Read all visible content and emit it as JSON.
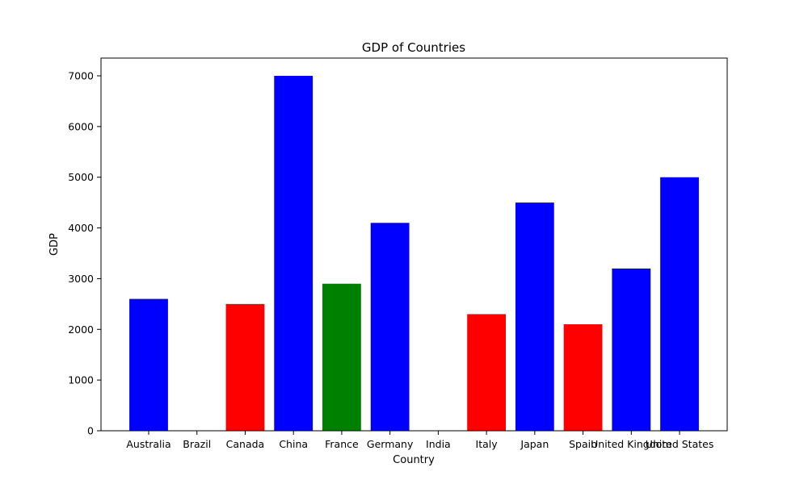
{
  "chart_data": {
    "type": "bar",
    "title": "GDP of Countries",
    "xlabel": "Country",
    "ylabel": "GDP",
    "categories": [
      "Australia",
      "Brazil",
      "Canada",
      "China",
      "France",
      "Germany",
      "India",
      "Italy",
      "Japan",
      "Spain",
      "United Kingdom",
      "United States"
    ],
    "values": [
      2600,
      0,
      2500,
      7000,
      2900,
      4100,
      0,
      2300,
      4500,
      2100,
      3200,
      5000
    ],
    "colors": [
      "#0000ff",
      "#0000ff",
      "#ff0000",
      "#0000ff",
      "#008000",
      "#0000ff",
      "#0000ff",
      "#ff0000",
      "#0000ff",
      "#ff0000",
      "#0000ff",
      "#0000ff"
    ],
    "yticks": [
      0,
      1000,
      2000,
      3000,
      4000,
      5000,
      6000,
      7000
    ],
    "ylim": [
      0,
      7350
    ],
    "grid": false,
    "legend": false
  }
}
